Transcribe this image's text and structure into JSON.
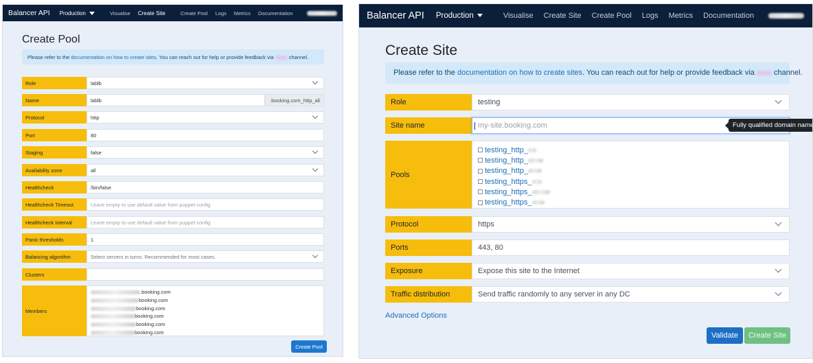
{
  "nav": {
    "brand": "Balancer API",
    "env": "Production",
    "links": [
      "Visualise",
      "Create Site",
      "Create Pool",
      "Logs",
      "Metrics",
      "Documentation"
    ]
  },
  "left": {
    "title": "Create Pool",
    "info": {
      "prefix": "Please refer to the ",
      "link": "documentation on how to create sites",
      "middle": ". You can reach out for help or provide feedback via ",
      "suffix": " channel."
    },
    "fields": {
      "role": {
        "label": "Role",
        "value": "lablb"
      },
      "name": {
        "label": "Name",
        "value": "lablb",
        "suffix": ".booking.com_http_all"
      },
      "protocol": {
        "label": "Protocol",
        "value": "http"
      },
      "port": {
        "label": "Port",
        "value": "80"
      },
      "staging": {
        "label": "Staging",
        "value": "false"
      },
      "az": {
        "label": "Availability zone",
        "value": "all"
      },
      "healthcheck": {
        "label": "Healthcheck",
        "value": "/bin/false"
      },
      "hc_timeout": {
        "label": "Healthcheck Timeout",
        "placeholder": "Leave empty to use default value from puppet config"
      },
      "hc_interval": {
        "label": "Healthcheck Interval",
        "placeholder": "Leave empty to use default value from puppet config"
      },
      "panic": {
        "label": "Panic thresholds",
        "value": "1"
      },
      "balancing": {
        "label": "Balancing algorithm",
        "value": "Select servers in turns. Recommended for most cases."
      },
      "clusters": {
        "label": "Clusters",
        "value": ""
      },
      "members": {
        "label": "Members",
        "lines": [
          ".booking.com",
          "booking.com",
          "booking.com",
          "booking.com",
          "booking.com",
          "booking.com"
        ]
      }
    },
    "button": "Create Pool"
  },
  "right": {
    "title": "Create Site",
    "info": {
      "prefix": "Please refer to the ",
      "link": "documentation on how to create sites",
      "middle": ". You can reach out for help or provide feedback via ",
      "suffix": " channel."
    },
    "fields": {
      "role": {
        "label": "Role",
        "value": "testing"
      },
      "site_name": {
        "label": "Site name",
        "placeholder": "my-site.booking.com",
        "tooltip": "Fully qualified domain name"
      },
      "pools": {
        "label": "Pools",
        "items": [
          "testing_http_",
          "testing_http_",
          "testing_http_",
          "testing_https_",
          "testing_https_",
          "testing_https_"
        ]
      },
      "protocol": {
        "label": "Protocol",
        "value": "https"
      },
      "ports": {
        "label": "Ports",
        "value": "443, 80"
      },
      "exposure": {
        "label": "Exposure",
        "value": "Expose this site to the Internet"
      },
      "traffic": {
        "label": "Traffic distribution",
        "value": "Send traffic randomly to any server in any DC"
      }
    },
    "advanced": "Advanced Options",
    "validate": "Validate",
    "create": "Create Site"
  }
}
